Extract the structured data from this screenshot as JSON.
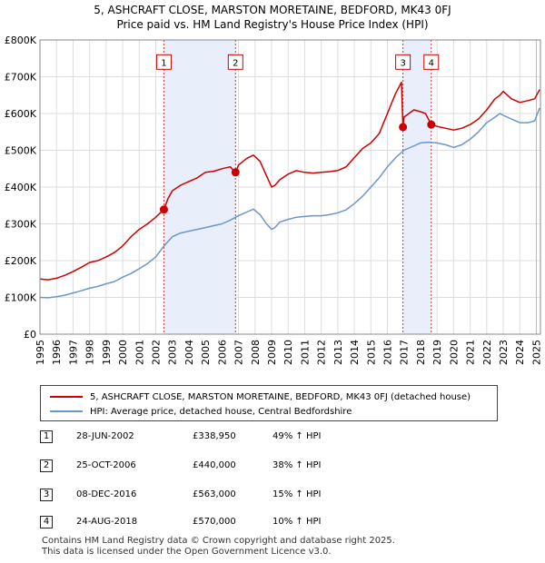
{
  "title_line1": "5, ASHCRAFT CLOSE, MARSTON MORETAINE, BEDFORD, MK43 0FJ",
  "title_line2": "Price paid vs. HM Land Registry's House Price Index (HPI)",
  "chart_data": {
    "type": "line",
    "title": "5, ASHCRAFT CLOSE, MARSTON MORETAINE, BEDFORD, MK43 0FJ — Price paid vs. HM Land Registry's House Price Index (HPI)",
    "xlim": [
      1995,
      2025.25
    ],
    "ylim": [
      0,
      800000
    ],
    "y_ticks": [
      0,
      100000,
      200000,
      300000,
      400000,
      500000,
      600000,
      700000,
      800000
    ],
    "y_tick_labels": [
      "£0",
      "£100K",
      "£200K",
      "£300K",
      "£400K",
      "£500K",
      "£600K",
      "£700K",
      "£800K"
    ],
    "x_ticks": [
      "1995",
      "1996",
      "1997",
      "1998",
      "1999",
      "2000",
      "2001",
      "2002",
      "2003",
      "2004",
      "2005",
      "2006",
      "2007",
      "2008",
      "2009",
      "2010",
      "2011",
      "2012",
      "2013",
      "2014",
      "2015",
      "2016",
      "2017",
      "2018",
      "2019",
      "2020",
      "2021",
      "2022",
      "2023",
      "2024",
      "2025"
    ],
    "grid": true,
    "series": [
      {
        "name": "5, ASHCRAFT CLOSE, MARSTON MORETAINE, BEDFORD, MK43 0FJ (detached house)",
        "color": "#cc0000",
        "x": [
          1995.0,
          1995.5,
          1996.0,
          1996.5,
          1997.0,
          1997.5,
          1998.0,
          1998.5,
          1999.0,
          1999.5,
          2000.0,
          2000.5,
          2001.0,
          2001.5,
          2002.0,
          2002.49,
          2002.75,
          2003.0,
          2003.5,
          2004.0,
          2004.5,
          2005.0,
          2005.5,
          2006.0,
          2006.5,
          2006.82,
          2007.0,
          2007.5,
          2007.9,
          2008.3,
          2008.7,
          2009.0,
          2009.2,
          2009.5,
          2010.0,
          2010.5,
          2011.0,
          2011.5,
          2012.0,
          2012.5,
          2013.0,
          2013.5,
          2014.0,
          2014.5,
          2015.0,
          2015.5,
          2016.0,
          2016.5,
          2016.85,
          2016.94,
          2017.0,
          2017.3,
          2017.6,
          2018.0,
          2018.3,
          2018.65,
          2019.0,
          2019.5,
          2020.0,
          2020.5,
          2021.0,
          2021.5,
          2022.0,
          2022.5,
          2022.8,
          2023.0,
          2023.5,
          2024.0,
          2024.5,
          2024.9,
          2025.2
        ],
        "values": [
          150000,
          148000,
          152000,
          160000,
          170000,
          182000,
          195000,
          200000,
          210000,
          222000,
          240000,
          265000,
          285000,
          300000,
          318000,
          338950,
          370000,
          390000,
          405000,
          415000,
          425000,
          440000,
          443000,
          450000,
          455000,
          440000,
          460000,
          478000,
          487000,
          470000,
          430000,
          400000,
          405000,
          420000,
          435000,
          445000,
          440000,
          438000,
          440000,
          442000,
          445000,
          455000,
          480000,
          505000,
          520000,
          545000,
          600000,
          655000,
          685000,
          563000,
          590000,
          600000,
          610000,
          605000,
          600000,
          570000,
          565000,
          560000,
          555000,
          560000,
          570000,
          585000,
          610000,
          640000,
          650000,
          660000,
          640000,
          630000,
          635000,
          640000,
          665000
        ]
      },
      {
        "name": "HPI: Average price, detached house, Central Bedfordshire",
        "color": "#6b96c9",
        "x": [
          1995.0,
          1995.5,
          1996.0,
          1996.5,
          1997.0,
          1997.5,
          1998.0,
          1998.5,
          1999.0,
          1999.5,
          2000.0,
          2000.5,
          2001.0,
          2001.5,
          2002.0,
          2002.5,
          2003.0,
          2003.5,
          2004.0,
          2004.5,
          2005.0,
          2005.5,
          2006.0,
          2006.5,
          2007.0,
          2007.5,
          2007.9,
          2008.3,
          2008.7,
          2009.0,
          2009.2,
          2009.5,
          2010.0,
          2010.5,
          2011.0,
          2011.5,
          2012.0,
          2012.5,
          2013.0,
          2013.5,
          2014.0,
          2014.5,
          2015.0,
          2015.5,
          2016.0,
          2016.5,
          2017.0,
          2017.5,
          2018.0,
          2018.5,
          2019.0,
          2019.5,
          2020.0,
          2020.5,
          2021.0,
          2021.5,
          2022.0,
          2022.5,
          2022.8,
          2023.0,
          2023.5,
          2024.0,
          2024.5,
          2024.9,
          2025.2
        ],
        "values": [
          100000,
          99000,
          102000,
          106000,
          112000,
          118000,
          125000,
          130000,
          137000,
          143000,
          155000,
          165000,
          178000,
          192000,
          210000,
          240000,
          265000,
          275000,
          280000,
          285000,
          290000,
          295000,
          300000,
          310000,
          322000,
          332000,
          340000,
          325000,
          300000,
          285000,
          290000,
          305000,
          312000,
          318000,
          320000,
          322000,
          322000,
          325000,
          330000,
          338000,
          355000,
          375000,
          400000,
          425000,
          455000,
          480000,
          500000,
          510000,
          520000,
          522000,
          520000,
          515000,
          508000,
          515000,
          530000,
          550000,
          575000,
          590000,
          600000,
          595000,
          585000,
          575000,
          575000,
          580000,
          615000
        ]
      }
    ],
    "sales": [
      {
        "id": "1",
        "x": 2002.49,
        "value": 338950
      },
      {
        "id": "2",
        "x": 2006.82,
        "value": 440000
      },
      {
        "id": "3",
        "x": 2016.94,
        "value": 563000
      },
      {
        "id": "4",
        "x": 2018.65,
        "value": 570000
      }
    ]
  },
  "legend": {
    "property_label": "5, ASHCRAFT CLOSE, MARSTON MORETAINE, BEDFORD, MK43 0FJ (detached house)",
    "hpi_label": "HPI: Average price, detached house, Central Bedfordshire",
    "property_color": "#cc0000",
    "hpi_color": "#6b96c9"
  },
  "transactions": [
    {
      "num": "1",
      "date": "28-JUN-2002",
      "price": "£338,950",
      "hpi": "49% ↑ HPI"
    },
    {
      "num": "2",
      "date": "25-OCT-2006",
      "price": "£440,000",
      "hpi": "38% ↑ HPI"
    },
    {
      "num": "3",
      "date": "08-DEC-2016",
      "price": "£563,000",
      "hpi": "15% ↑ HPI"
    },
    {
      "num": "4",
      "date": "24-AUG-2018",
      "price": "£570,000",
      "hpi": "10% ↑ HPI"
    }
  ],
  "footer": {
    "line1": "Contains HM Land Registry data © Crown copyright and database right 2025.",
    "line2": "This data is licensed under the Open Government Licence v3.0."
  }
}
